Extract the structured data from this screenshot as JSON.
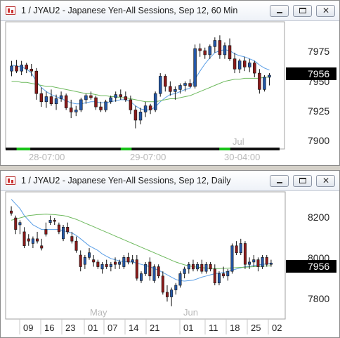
{
  "windows": [
    {
      "id": "w60",
      "title": "1 / JYAU2 - Japanese Yen-All Sessions, Sep 12, 60 Min",
      "last_price": "7956",
      "watermark": "Jul",
      "y_ticks": [
        "7975",
        "7950",
        "7925",
        "7900"
      ],
      "x_labels": [
        "28-07:00",
        "29-07:00",
        "30-04:00"
      ],
      "colors": {
        "up": "#2357a8",
        "down": "#8b1a1a",
        "ma_fast": "#5a9ee6",
        "ma_slow": "#6fba5f",
        "session": "#19c219",
        "axis": "#111111"
      },
      "chart_data": {
        "type": "candlestick",
        "ylim": [
          7890,
          8000
        ],
        "candles": [
          {
            "o": 7960,
            "h": 7970,
            "l": 7955,
            "c": 7965
          },
          {
            "o": 7965,
            "h": 7971,
            "l": 7958,
            "c": 7960
          },
          {
            "o": 7960,
            "h": 7970,
            "l": 7956,
            "c": 7966
          },
          {
            "o": 7966,
            "h": 7968,
            "l": 7958,
            "c": 7962
          },
          {
            "o": 7962,
            "h": 7967,
            "l": 7955,
            "c": 7960
          },
          {
            "o": 7960,
            "h": 7963,
            "l": 7932,
            "c": 7938
          },
          {
            "o": 7938,
            "h": 7944,
            "l": 7925,
            "c": 7930
          },
          {
            "o": 7930,
            "h": 7940,
            "l": 7924,
            "c": 7935
          },
          {
            "o": 7935,
            "h": 7942,
            "l": 7926,
            "c": 7928
          },
          {
            "o": 7928,
            "h": 7937,
            "l": 7922,
            "c": 7933
          },
          {
            "o": 7933,
            "h": 7940,
            "l": 7930,
            "c": 7936
          },
          {
            "o": 7936,
            "h": 7938,
            "l": 7922,
            "c": 7924
          },
          {
            "o": 7924,
            "h": 7932,
            "l": 7914,
            "c": 7920
          },
          {
            "o": 7920,
            "h": 7926,
            "l": 7916,
            "c": 7922
          },
          {
            "o": 7922,
            "h": 7934,
            "l": 7920,
            "c": 7932
          },
          {
            "o": 7932,
            "h": 7938,
            "l": 7928,
            "c": 7936
          },
          {
            "o": 7936,
            "h": 7940,
            "l": 7932,
            "c": 7934
          },
          {
            "o": 7934,
            "h": 7936,
            "l": 7922,
            "c": 7925
          },
          {
            "o": 7925,
            "h": 7930,
            "l": 7920,
            "c": 7922
          },
          {
            "o": 7922,
            "h": 7932,
            "l": 7920,
            "c": 7930
          },
          {
            "o": 7930,
            "h": 7936,
            "l": 7928,
            "c": 7934
          },
          {
            "o": 7934,
            "h": 7940,
            "l": 7930,
            "c": 7937
          },
          {
            "o": 7937,
            "h": 7942,
            "l": 7932,
            "c": 7935
          },
          {
            "o": 7935,
            "h": 7940,
            "l": 7930,
            "c": 7932
          },
          {
            "o": 7932,
            "h": 7936,
            "l": 7918,
            "c": 7922
          },
          {
            "o": 7922,
            "h": 7926,
            "l": 7904,
            "c": 7912
          },
          {
            "o": 7912,
            "h": 7924,
            "l": 7908,
            "c": 7920
          },
          {
            "o": 7920,
            "h": 7930,
            "l": 7915,
            "c": 7926
          },
          {
            "o": 7926,
            "h": 7928,
            "l": 7918,
            "c": 7922
          },
          {
            "o": 7922,
            "h": 7940,
            "l": 7920,
            "c": 7938
          },
          {
            "o": 7938,
            "h": 7958,
            "l": 7935,
            "c": 7955
          },
          {
            "o": 7955,
            "h": 7957,
            "l": 7940,
            "c": 7945
          },
          {
            "o": 7945,
            "h": 7950,
            "l": 7936,
            "c": 7940
          },
          {
            "o": 7940,
            "h": 7945,
            "l": 7932,
            "c": 7942
          },
          {
            "o": 7942,
            "h": 7948,
            "l": 7938,
            "c": 7946
          },
          {
            "o": 7946,
            "h": 7950,
            "l": 7940,
            "c": 7948
          },
          {
            "o": 7948,
            "h": 7952,
            "l": 7944,
            "c": 7945
          },
          {
            "o": 7945,
            "h": 7986,
            "l": 7943,
            "c": 7982
          },
          {
            "o": 7982,
            "h": 7987,
            "l": 7974,
            "c": 7980
          },
          {
            "o": 7980,
            "h": 7983,
            "l": 7972,
            "c": 7976
          },
          {
            "o": 7976,
            "h": 7986,
            "l": 7972,
            "c": 7984
          },
          {
            "o": 7984,
            "h": 7993,
            "l": 7978,
            "c": 7990
          },
          {
            "o": 7990,
            "h": 7995,
            "l": 7972,
            "c": 7976
          },
          {
            "o": 7976,
            "h": 7988,
            "l": 7972,
            "c": 7985
          },
          {
            "o": 7985,
            "h": 7992,
            "l": 7970,
            "c": 7972
          },
          {
            "o": 7972,
            "h": 7978,
            "l": 7958,
            "c": 7962
          },
          {
            "o": 7962,
            "h": 7972,
            "l": 7958,
            "c": 7970
          },
          {
            "o": 7970,
            "h": 7974,
            "l": 7960,
            "c": 7964
          },
          {
            "o": 7964,
            "h": 7972,
            "l": 7959,
            "c": 7968
          },
          {
            "o": 7968,
            "h": 7970,
            "l": 7954,
            "c": 7958
          },
          {
            "o": 7958,
            "h": 7962,
            "l": 7938,
            "c": 7942
          },
          {
            "o": 7942,
            "h": 7956,
            "l": 7940,
            "c": 7954
          },
          {
            "o": 7954,
            "h": 7958,
            "l": 7946,
            "c": 7956
          }
        ],
        "ma_fast": [
          7966,
          7965,
          7964,
          7962,
          7958,
          7950,
          7944,
          7940,
          7937,
          7935,
          7933,
          7931,
          7929,
          7928,
          7928,
          7929,
          7930,
          7930,
          7929,
          7929,
          7930,
          7931,
          7932,
          7932,
          7930,
          7926,
          7923,
          7922,
          7922,
          7925,
          7930,
          7934,
          7937,
          7938,
          7940,
          7942,
          7943,
          7952,
          7960,
          7967,
          7973,
          7978,
          7980,
          7981,
          7980,
          7977,
          7975,
          7974,
          7972,
          7970,
          7966,
          7963,
          7961
        ],
        "ma_slow": [
          7950,
          7950,
          7949,
          7949,
          7948,
          7947,
          7946,
          7945,
          7945,
          7944,
          7943,
          7942,
          7941,
          7940,
          7939,
          7938,
          7938,
          7937,
          7936,
          7936,
          7935,
          7935,
          7934,
          7934,
          7933,
          7932,
          7931,
          7930,
          7930,
          7930,
          7931,
          7932,
          7933,
          7933,
          7934,
          7935,
          7936,
          7938,
          7940,
          7942,
          7944,
          7946,
          7948,
          7950,
          7951,
          7952,
          7952,
          7953,
          7953,
          7953,
          7953,
          7954,
          7954
        ],
        "session_bars": [
          [
            0.04,
            0.09
          ],
          [
            0.42,
            0.46
          ],
          [
            0.78,
            0.82
          ]
        ]
      }
    },
    {
      "id": "wD",
      "title": "1 / JYAU2 - Japanese Yen-All Sessions, Sep 12, Daily",
      "last_price": "7956",
      "y_ticks": [
        "8200",
        "8000",
        "7800"
      ],
      "x_labels": [
        "09",
        "16",
        "23",
        "01",
        "07",
        "14",
        "21",
        "01",
        "11",
        "18",
        "25",
        "02"
      ],
      "month_labels": [
        "May",
        "Jun"
      ],
      "colors": {
        "up": "#2357a8",
        "down": "#8b1a1a",
        "ma_fast": "#5a9ee6",
        "ma_slow": "#6fba5f",
        "axis": "#111111"
      },
      "chart_data": {
        "type": "candlestick",
        "ylim": [
          7730,
          8250
        ],
        "candles": [
          {
            "o": 8180,
            "h": 8200,
            "l": 8160,
            "c": 8170
          },
          {
            "o": 8150,
            "h": 8160,
            "l": 8080,
            "c": 8100
          },
          {
            "o": 8120,
            "h": 8140,
            "l": 8080,
            "c": 8130
          },
          {
            "o": 8090,
            "h": 8110,
            "l": 8020,
            "c": 8030
          },
          {
            "o": 8060,
            "h": 8080,
            "l": 8030,
            "c": 8050
          },
          {
            "o": 8040,
            "h": 8070,
            "l": 8020,
            "c": 8060
          },
          {
            "o": 8060,
            "h": 8090,
            "l": 8040,
            "c": 8050
          },
          {
            "o": 8030,
            "h": 8060,
            "l": 8010,
            "c": 8020
          },
          {
            "o": 8100,
            "h": 8130,
            "l": 8070,
            "c": 8080
          },
          {
            "o": 8130,
            "h": 8160,
            "l": 8120,
            "c": 8140
          },
          {
            "o": 8140,
            "h": 8150,
            "l": 8120,
            "c": 8135
          },
          {
            "o": 8120,
            "h": 8130,
            "l": 8080,
            "c": 8090
          },
          {
            "o": 8060,
            "h": 8120,
            "l": 8050,
            "c": 8110
          },
          {
            "o": 8110,
            "h": 8130,
            "l": 8080,
            "c": 8090
          },
          {
            "o": 8070,
            "h": 8090,
            "l": 8040,
            "c": 8050
          },
          {
            "o": 8050,
            "h": 8070,
            "l": 8000,
            "c": 8010
          },
          {
            "o": 7990,
            "h": 8010,
            "l": 7920,
            "c": 7940
          },
          {
            "o": 7950,
            "h": 7990,
            "l": 7930,
            "c": 7980
          },
          {
            "o": 7980,
            "h": 8020,
            "l": 7970,
            "c": 8000
          },
          {
            "o": 7970,
            "h": 7990,
            "l": 7940,
            "c": 7960
          },
          {
            "o": 7960,
            "h": 7970,
            "l": 7930,
            "c": 7940
          },
          {
            "o": 7930,
            "h": 7960,
            "l": 7910,
            "c": 7950
          },
          {
            "o": 7950,
            "h": 7970,
            "l": 7930,
            "c": 7940
          },
          {
            "o": 7940,
            "h": 7960,
            "l": 7920,
            "c": 7950
          },
          {
            "o": 7960,
            "h": 7980,
            "l": 7930,
            "c": 7950
          },
          {
            "o": 7950,
            "h": 7970,
            "l": 7930,
            "c": 7960
          },
          {
            "o": 7940,
            "h": 7990,
            "l": 7930,
            "c": 7980
          },
          {
            "o": 7980,
            "h": 8000,
            "l": 7950,
            "c": 7960
          },
          {
            "o": 7960,
            "h": 7990,
            "l": 7950,
            "c": 7970
          },
          {
            "o": 7970,
            "h": 7990,
            "l": 7880,
            "c": 7890
          },
          {
            "o": 7880,
            "h": 7920,
            "l": 7870,
            "c": 7910
          },
          {
            "o": 7910,
            "h": 7960,
            "l": 7900,
            "c": 7950
          },
          {
            "o": 7960,
            "h": 7980,
            "l": 7880,
            "c": 7900
          },
          {
            "o": 7880,
            "h": 7950,
            "l": 7870,
            "c": 7940
          },
          {
            "o": 7940,
            "h": 7950,
            "l": 7890,
            "c": 7900
          },
          {
            "o": 7900,
            "h": 7920,
            "l": 7820,
            "c": 7830
          },
          {
            "o": 7830,
            "h": 7860,
            "l": 7790,
            "c": 7810
          },
          {
            "o": 7810,
            "h": 7850,
            "l": 7770,
            "c": 7840
          },
          {
            "o": 7840,
            "h": 7870,
            "l": 7820,
            "c": 7860
          },
          {
            "o": 7860,
            "h": 7920,
            "l": 7850,
            "c": 7910
          },
          {
            "o": 7910,
            "h": 7940,
            "l": 7890,
            "c": 7930
          },
          {
            "o": 7930,
            "h": 7960,
            "l": 7910,
            "c": 7950
          },
          {
            "o": 7950,
            "h": 7970,
            "l": 7920,
            "c": 7930
          },
          {
            "o": 7930,
            "h": 7960,
            "l": 7920,
            "c": 7950
          },
          {
            "o": 7950,
            "h": 7970,
            "l": 7910,
            "c": 7920
          },
          {
            "o": 7920,
            "h": 7960,
            "l": 7910,
            "c": 7950
          },
          {
            "o": 7950,
            "h": 7960,
            "l": 7920,
            "c": 7930
          },
          {
            "o": 7930,
            "h": 7950,
            "l": 7860,
            "c": 7870
          },
          {
            "o": 7870,
            "h": 7920,
            "l": 7860,
            "c": 7910
          },
          {
            "o": 7910,
            "h": 7940,
            "l": 7890,
            "c": 7900
          },
          {
            "o": 7900,
            "h": 7930,
            "l": 7880,
            "c": 7920
          },
          {
            "o": 7920,
            "h": 8040,
            "l": 7910,
            "c": 8030
          },
          {
            "o": 8030,
            "h": 8050,
            "l": 7990,
            "c": 8000
          },
          {
            "o": 8000,
            "h": 8060,
            "l": 7990,
            "c": 8040
          },
          {
            "o": 8040,
            "h": 8050,
            "l": 7930,
            "c": 7950
          },
          {
            "o": 7950,
            "h": 7980,
            "l": 7930,
            "c": 7960
          },
          {
            "o": 7960,
            "h": 7990,
            "l": 7940,
            "c": 7970
          },
          {
            "o": 7970,
            "h": 7980,
            "l": 7920,
            "c": 7940
          },
          {
            "o": 7940,
            "h": 7990,
            "l": 7930,
            "c": 7980
          },
          {
            "o": 7980,
            "h": 7990,
            "l": 7940,
            "c": 7950
          },
          {
            "o": 7950,
            "h": 7970,
            "l": 7940,
            "c": 7956
          }
        ],
        "ma_fast": [
          8230,
          8210,
          8190,
          8160,
          8140,
          8120,
          8110,
          8100,
          8100,
          8100,
          8100,
          8100,
          8095,
          8090,
          8085,
          8075,
          8060,
          8045,
          8030,
          8020,
          8010,
          7995,
          7985,
          7975,
          7970,
          7965,
          7962,
          7960,
          7960,
          7955,
          7950,
          7945,
          7940,
          7932,
          7925,
          7915,
          7905,
          7895,
          7885,
          7880,
          7878,
          7880,
          7882,
          7888,
          7895,
          7900,
          7905,
          7910,
          7912,
          7915,
          7920,
          7925,
          7930,
          7935,
          7940,
          7942,
          7945,
          7948,
          7950,
          7952,
          7955
        ],
        "ma_slow": [
          8140,
          8145,
          8150,
          8155,
          8160,
          8162,
          8164,
          8165,
          8166,
          8165,
          8164,
          8162,
          8160,
          8156,
          8150,
          8144,
          8136,
          8128,
          8120,
          8112,
          8104,
          8096,
          8088,
          8080,
          8072,
          8064,
          8056,
          8048,
          8040,
          8032,
          8024,
          8016,
          8008,
          8000,
          7992,
          7984,
          7976,
          7968,
          7960,
          7954,
          7948,
          7944,
          7940,
          7938,
          7936,
          7934,
          7933,
          7932,
          7932,
          7933,
          7934,
          7935,
          7936,
          7937,
          7938,
          7939,
          7940,
          7941,
          7942,
          7943,
          7944
        ]
      }
    }
  ]
}
